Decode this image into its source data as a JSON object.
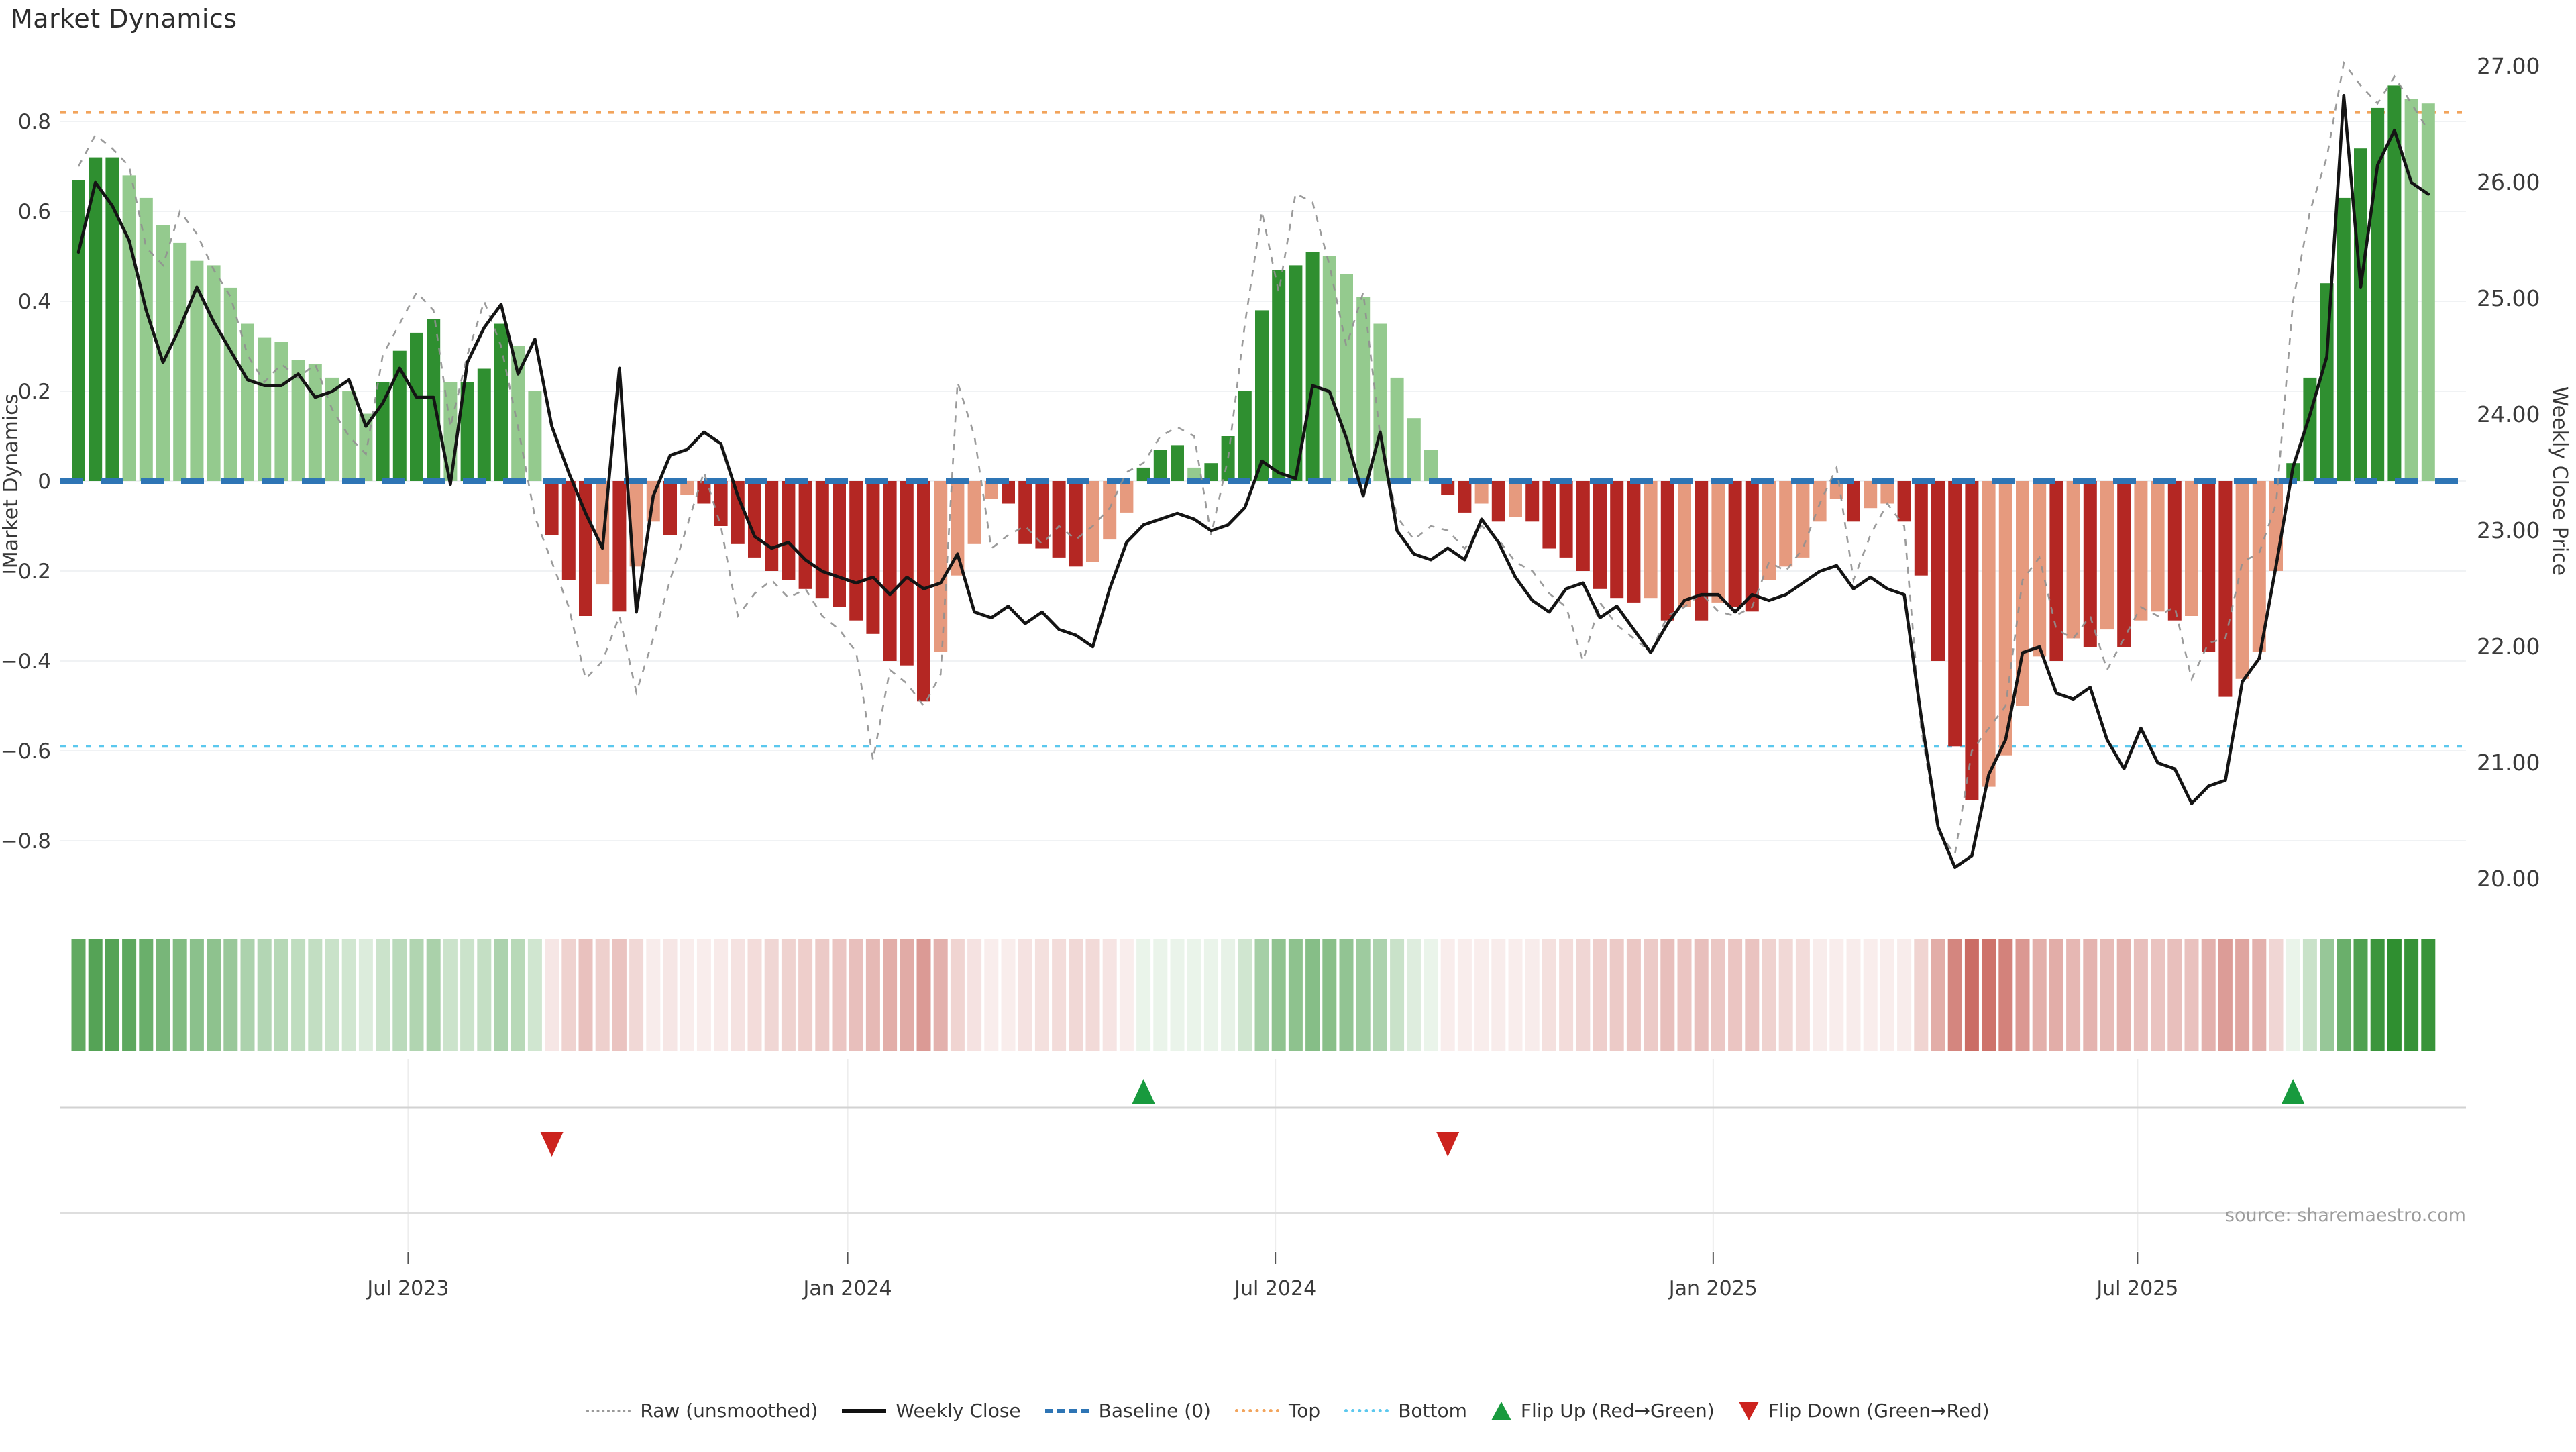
{
  "title": "Market Dynamics",
  "source": "source: sharemaestro.com",
  "axes": {
    "left": {
      "title": "Market Dynamics",
      "tick_labels": [
        "0.8",
        "0.6",
        "0.4",
        "0.2",
        "0",
        "−0.2",
        "−0.4",
        "−0.6",
        "−0.8"
      ],
      "tick_values": [
        0.8,
        0.6,
        0.4,
        0.2,
        0,
        -0.2,
        -0.4,
        -0.6,
        -0.8
      ]
    },
    "right": {
      "title": "Weekly Close Price",
      "tick_labels": [
        "27.00",
        "26.00",
        "25.00",
        "24.00",
        "23.00",
        "22.00",
        "21.00",
        "20.00"
      ],
      "tick_values": [
        27,
        26,
        25,
        24,
        23,
        22,
        21,
        20
      ]
    },
    "x": {
      "tick_labels": [
        "Jul 2023",
        "Jan 2024",
        "Jul 2024",
        "Jan 2025",
        "Jul 2025"
      ],
      "tick_positions": [
        19.5,
        45.5,
        70.8,
        96.7,
        121.8
      ]
    }
  },
  "legend": {
    "items": [
      {
        "label": "Raw (unsmoothed)"
      },
      {
        "label": "Weekly Close"
      },
      {
        "label": "Baseline (0)"
      },
      {
        "label": "Top"
      },
      {
        "label": "Bottom"
      },
      {
        "label": "Flip Up (Red→Green)"
      },
      {
        "label": "Flip Down (Green→Red)"
      }
    ]
  },
  "colors": {
    "bar_pos_strong": "#2f8f30",
    "bar_pos_soft": "#94ca8e",
    "bar_neg_strong": "#b42723",
    "bar_neg_soft": "#e69a7e",
    "raw_line": "#909090",
    "close_line": "#141414",
    "baseline": "#2e75b5",
    "top_line": "#f2a45c",
    "bottom_line": "#5bc8ee",
    "flip_up": "#189a3e",
    "flip_down": "#cc231e",
    "grid": "#f0f2f4",
    "tick_text": "#3b3b3b",
    "source_text": "#9c9c9c"
  },
  "chart_data": {
    "type": "bar",
    "subtype": "combo-oscillator-with-price",
    "title": "Market Dynamics",
    "xlabel": "",
    "ylabel_left": "Market Dynamics",
    "ylabel_right": "Weekly Close Price",
    "x_unit": "weekly",
    "n_points": 140,
    "left_ylim": [
      -0.95,
      0.95
    ],
    "right_ylim": [
      19.73,
      27.12
    ],
    "grid": true,
    "legend_position": "bottom-center",
    "reference_lines": {
      "baseline": 0,
      "top": 0.82,
      "bottom": -0.59
    },
    "markers": {
      "flip_up_indices": [
        63,
        131
      ],
      "flip_down_indices": [
        28,
        81
      ]
    },
    "series": [
      {
        "name": "Market Dynamics",
        "type": "bar",
        "axis": "left",
        "values": [
          0.67,
          0.72,
          0.72,
          0.68,
          0.63,
          0.57,
          0.53,
          0.49,
          0.48,
          0.43,
          0.35,
          0.32,
          0.31,
          0.27,
          0.26,
          0.23,
          0.2,
          0.15,
          0.22,
          0.29,
          0.33,
          0.36,
          0.22,
          0.22,
          0.25,
          0.35,
          0.3,
          0.2,
          -0.12,
          -0.22,
          -0.3,
          -0.23,
          -0.29,
          -0.19,
          -0.09,
          -0.12,
          -0.03,
          -0.05,
          -0.1,
          -0.14,
          -0.17,
          -0.2,
          -0.22,
          -0.24,
          -0.26,
          -0.28,
          -0.31,
          -0.34,
          -0.4,
          -0.41,
          -0.49,
          -0.38,
          -0.21,
          -0.14,
          -0.04,
          -0.05,
          -0.14,
          -0.15,
          -0.17,
          -0.19,
          -0.18,
          -0.13,
          -0.07,
          0.03,
          0.07,
          0.08,
          0.03,
          0.04,
          0.1,
          0.2,
          0.38,
          0.47,
          0.48,
          0.51,
          0.5,
          0.46,
          0.41,
          0.35,
          0.23,
          0.14,
          0.07,
          -0.03,
          -0.07,
          -0.05,
          -0.09,
          -0.08,
          -0.09,
          -0.15,
          -0.17,
          -0.2,
          -0.24,
          -0.26,
          -0.27,
          -0.26,
          -0.31,
          -0.28,
          -0.31,
          -0.27,
          -0.28,
          -0.29,
          -0.22,
          -0.19,
          -0.17,
          -0.09,
          -0.04,
          -0.09,
          -0.06,
          -0.05,
          -0.09,
          -0.21,
          -0.4,
          -0.59,
          -0.71,
          -0.68,
          -0.61,
          -0.5,
          -0.39,
          -0.4,
          -0.35,
          -0.37,
          -0.33,
          -0.37,
          -0.31,
          -0.29,
          -0.31,
          -0.3,
          -0.38,
          -0.48,
          -0.44,
          -0.38,
          -0.2,
          0.04,
          0.23,
          0.44,
          0.63,
          0.74,
          0.83,
          0.88,
          0.85,
          0.84
        ]
      },
      {
        "name": "Raw (unsmoothed)",
        "type": "line",
        "style": "dotted",
        "axis": "left",
        "values": [
          0.7,
          0.77,
          0.74,
          0.7,
          0.52,
          0.48,
          0.6,
          0.55,
          0.47,
          0.41,
          0.28,
          0.22,
          0.26,
          0.23,
          0.26,
          0.16,
          0.1,
          0.06,
          0.28,
          0.35,
          0.42,
          0.38,
          0.12,
          0.28,
          0.4,
          0.3,
          0.12,
          -0.08,
          -0.18,
          -0.28,
          -0.44,
          -0.4,
          -0.3,
          -0.47,
          -0.35,
          -0.22,
          -0.1,
          0.02,
          -0.1,
          -0.3,
          -0.25,
          -0.22,
          -0.26,
          -0.24,
          -0.3,
          -0.33,
          -0.38,
          -0.62,
          -0.42,
          -0.45,
          -0.5,
          -0.43,
          0.22,
          0.1,
          -0.15,
          -0.12,
          -0.1,
          -0.14,
          -0.1,
          -0.13,
          -0.1,
          -0.06,
          0.02,
          0.04,
          0.1,
          0.12,
          0.1,
          -0.12,
          0.05,
          0.35,
          0.6,
          0.42,
          0.64,
          0.62,
          0.48,
          0.3,
          0.42,
          0.1,
          -0.08,
          -0.13,
          -0.1,
          -0.11,
          -0.15,
          -0.1,
          -0.13,
          -0.18,
          -0.2,
          -0.25,
          -0.28,
          -0.4,
          -0.27,
          -0.32,
          -0.35,
          -0.38,
          -0.3,
          -0.28,
          -0.25,
          -0.29,
          -0.3,
          -0.28,
          -0.18,
          -0.2,
          -0.15,
          -0.05,
          0.03,
          -0.22,
          -0.12,
          -0.05,
          -0.1,
          -0.55,
          -0.78,
          -0.83,
          -0.6,
          -0.55,
          -0.5,
          -0.22,
          -0.17,
          -0.33,
          -0.35,
          -0.3,
          -0.42,
          -0.35,
          -0.28,
          -0.3,
          -0.28,
          -0.44,
          -0.36,
          -0.35,
          -0.18,
          -0.16,
          -0.05,
          0.4,
          0.6,
          0.72,
          0.93,
          0.88,
          0.84,
          0.9,
          0.84,
          0.78
        ]
      },
      {
        "name": "Weekly Close",
        "type": "line",
        "axis": "right",
        "values": [
          25.4,
          26.0,
          25.8,
          25.5,
          24.9,
          24.45,
          24.75,
          25.1,
          24.8,
          24.55,
          24.3,
          24.25,
          24.25,
          24.35,
          24.15,
          24.2,
          24.3,
          23.9,
          24.1,
          24.4,
          24.15,
          24.15,
          23.4,
          24.45,
          24.75,
          24.95,
          24.35,
          24.65,
          23.9,
          23.5,
          23.15,
          22.85,
          24.4,
          22.3,
          23.3,
          23.65,
          23.7,
          23.85,
          23.75,
          23.3,
          22.95,
          22.85,
          22.9,
          22.75,
          22.65,
          22.6,
          22.55,
          22.6,
          22.45,
          22.6,
          22.5,
          22.55,
          22.8,
          22.3,
          22.25,
          22.35,
          22.2,
          22.3,
          22.15,
          22.1,
          22.0,
          22.5,
          22.9,
          23.05,
          23.1,
          23.15,
          23.1,
          23.0,
          23.05,
          23.2,
          23.6,
          23.5,
          23.45,
          24.25,
          24.2,
          23.8,
          23.3,
          23.85,
          23.0,
          22.8,
          22.75,
          22.85,
          22.75,
          23.1,
          22.9,
          22.6,
          22.4,
          22.3,
          22.5,
          22.55,
          22.25,
          22.35,
          22.15,
          21.95,
          22.2,
          22.4,
          22.45,
          22.45,
          22.3,
          22.45,
          22.4,
          22.45,
          22.55,
          22.65,
          22.7,
          22.5,
          22.6,
          22.5,
          22.45,
          21.4,
          20.45,
          20.1,
          20.2,
          20.9,
          21.2,
          21.95,
          22.0,
          21.6,
          21.55,
          21.65,
          21.2,
          20.95,
          21.3,
          21.0,
          20.95,
          20.65,
          20.8,
          20.85,
          21.7,
          21.9,
          22.7,
          23.55,
          24.0,
          24.5,
          26.75,
          25.1,
          26.15,
          26.45,
          26.0,
          25.9
        ]
      }
    ],
    "heatmap_strip": "derived from Market Dynamics bar values (green = positive, red = negative, intensity = magnitude)"
  }
}
